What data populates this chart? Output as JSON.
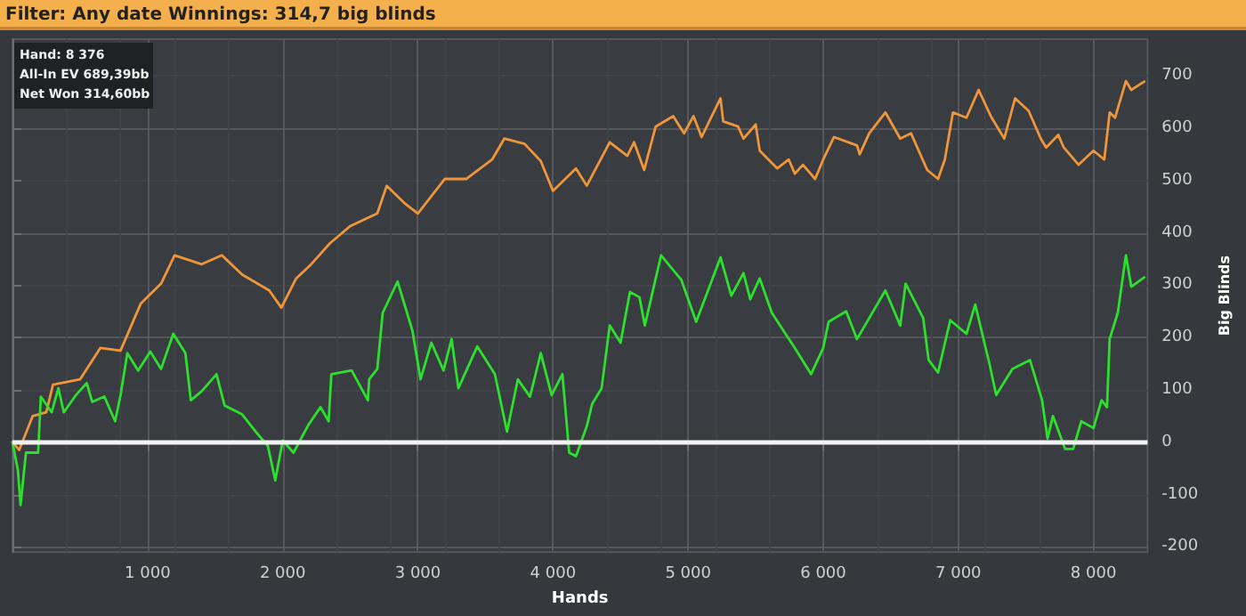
{
  "chart_data": {
    "type": "line",
    "title": "Filter: Any date Winnings: 314,7 big blinds",
    "xlabel": "Hands",
    "ylabel": "Big Blinds",
    "annotations": [
      "Hand: 8 376",
      "All-In EV 689,39bb",
      "Net Won 314,60bb"
    ],
    "series": [
      {
        "color": "#f0963a",
        "x": [
          0,
          50,
          150,
          250,
          300,
          500,
          650,
          800,
          950,
          1100,
          1200,
          1400,
          1550,
          1700,
          1900,
          1990,
          2100,
          2200,
          2350,
          2500,
          2700,
          2770,
          2900,
          3000,
          3200,
          3360,
          3550,
          3640,
          3790,
          3910,
          4000,
          4170,
          4250,
          4420,
          4550,
          4600,
          4675,
          4760,
          4890,
          4970,
          5040,
          5100,
          5240,
          5260,
          5370,
          5410,
          5500,
          5530,
          5660,
          5745,
          5790,
          5850,
          5940,
          6000,
          6080,
          6250,
          6270,
          6340,
          6460,
          6570,
          6650,
          6770,
          6850,
          6900,
          6960,
          7060,
          7150,
          7240,
          7340,
          7420,
          7520,
          7610,
          7650,
          7740,
          7780,
          7890,
          8000,
          8080,
          8120,
          8160,
          8240,
          8280,
          8376
        ],
        "values": [
          0,
          -15,
          50,
          57,
          110,
          120,
          180,
          175,
          265,
          303,
          357,
          340,
          357,
          320,
          290,
          257,
          313,
          337,
          380,
          413,
          437,
          490,
          457,
          437,
          503,
          503,
          540,
          580,
          570,
          537,
          480,
          523,
          490,
          573,
          547,
          573,
          520,
          603,
          623,
          590,
          623,
          583,
          657,
          613,
          603,
          580,
          607,
          557,
          523,
          540,
          513,
          530,
          503,
          540,
          583,
          567,
          550,
          590,
          630,
          580,
          590,
          520,
          503,
          540,
          630,
          620,
          673,
          623,
          580,
          657,
          633,
          580,
          563,
          587,
          563,
          530,
          557,
          540,
          630,
          620,
          690,
          673,
          689
        ]
      },
      {
        "color": "#2ee02e",
        "x": [
          0,
          40,
          60,
          100,
          190,
          210,
          290,
          340,
          380,
          470,
          550,
          590,
          680,
          760,
          800,
          850,
          930,
          1020,
          1100,
          1190,
          1280,
          1320,
          1400,
          1510,
          1570,
          1700,
          1800,
          1890,
          1945,
          2000,
          2080,
          2190,
          2280,
          2340,
          2360,
          2510,
          2630,
          2640,
          2700,
          2740,
          2850,
          2960,
          3020,
          3100,
          3190,
          3250,
          3300,
          3440,
          3570,
          3660,
          3740,
          3830,
          3910,
          3990,
          4070,
          4120,
          4170,
          4250,
          4290,
          4360,
          4420,
          4500,
          4570,
          4640,
          4680,
          4800,
          4950,
          5060,
          5240,
          5320,
          5410,
          5460,
          5530,
          5620,
          5790,
          5910,
          6000,
          6040,
          6170,
          6250,
          6460,
          6570,
          6610,
          6740,
          6780,
          6850,
          6940,
          7060,
          7125,
          7230,
          7280,
          7400,
          7530,
          7620,
          7660,
          7700,
          7790,
          7850,
          7910,
          8000,
          8060,
          8100,
          8120,
          8180,
          8240,
          8280,
          8376
        ],
        "values": [
          0,
          -53,
          -120,
          -20,
          -20,
          87,
          57,
          103,
          57,
          90,
          113,
          77,
          87,
          40,
          90,
          170,
          137,
          173,
          140,
          207,
          170,
          80,
          97,
          130,
          70,
          53,
          20,
          -7,
          -73,
          3,
          -20,
          33,
          67,
          40,
          130,
          137,
          80,
          120,
          140,
          247,
          307,
          213,
          120,
          190,
          137,
          197,
          103,
          183,
          130,
          20,
          120,
          87,
          170,
          90,
          130,
          -20,
          -27,
          30,
          73,
          103,
          223,
          190,
          287,
          277,
          223,
          357,
          310,
          230,
          353,
          280,
          323,
          273,
          313,
          247,
          180,
          130,
          180,
          230,
          250,
          197,
          290,
          223,
          303,
          237,
          157,
          133,
          233,
          207,
          263,
          150,
          90,
          140,
          157,
          80,
          7,
          50,
          -13,
          -13,
          40,
          27,
          80,
          67,
          197,
          247,
          357,
          297,
          315
        ]
      }
    ],
    "xlim": [
      0,
      8400
    ],
    "xticks": [
      {
        "value": 1000,
        "label": "1 000"
      },
      {
        "value": 2000,
        "label": "2 000"
      },
      {
        "value": 3000,
        "label": "3 000"
      },
      {
        "value": 4000,
        "label": "4 000"
      },
      {
        "value": 5000,
        "label": "5 000"
      },
      {
        "value": 6000,
        "label": "6 000"
      },
      {
        "value": 7000,
        "label": "7 000"
      },
      {
        "value": 8000,
        "label": "8 000"
      }
    ],
    "ylim": [
      -210,
      770
    ],
    "yticks": [
      -200,
      -100,
      0,
      100,
      200,
      300,
      400,
      500,
      600,
      700
    ],
    "ref_lines": [
      {
        "axis": "y",
        "value": 0,
        "color": "#f2f2f2"
      }
    ],
    "grid": true,
    "marker": "none",
    "line_style": "solid"
  }
}
